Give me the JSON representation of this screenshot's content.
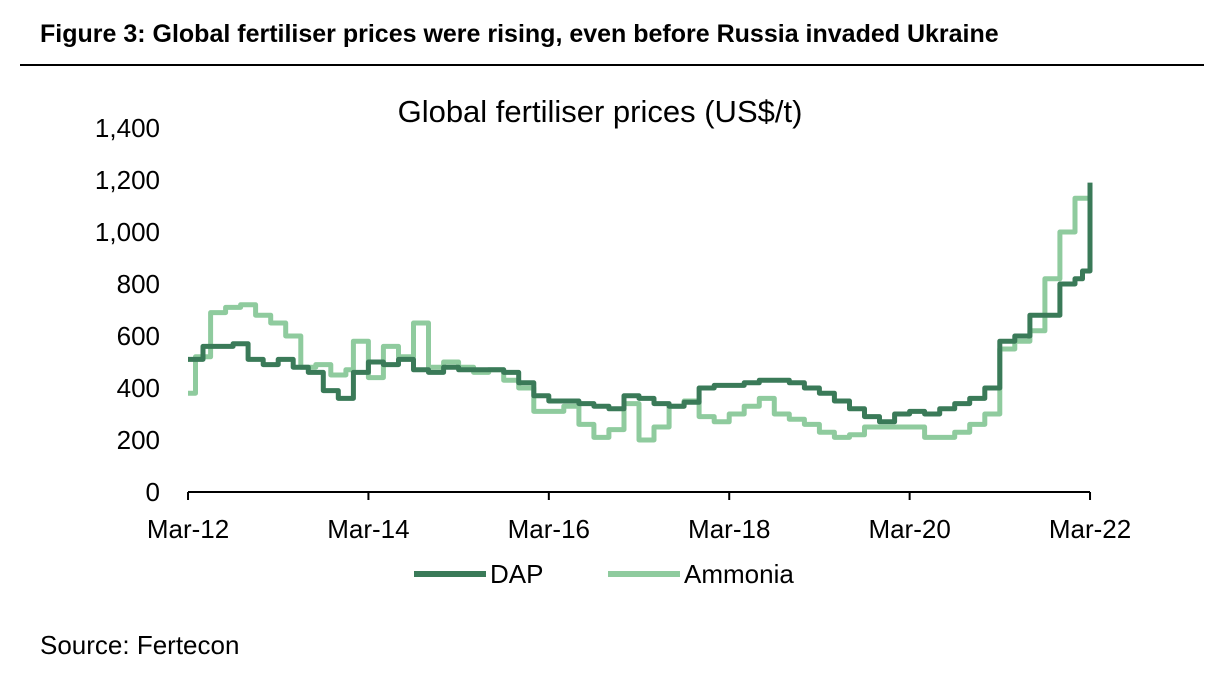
{
  "figure": {
    "heading": "Figure 3: Global fertiliser prices were rising, even before Russia invaded Ukraine",
    "source": "Source: Fertecon"
  },
  "chart_data": {
    "type": "line",
    "title": "Global fertiliser prices (US$/t)",
    "xlabel": "",
    "ylabel": "",
    "x_range": [
      "2012-03",
      "2022-03"
    ],
    "x_ticks": [
      "Mar-12",
      "Mar-14",
      "Mar-16",
      "Mar-18",
      "Mar-20",
      "Mar-22"
    ],
    "x_tick_years": [
      2012.167,
      2014.167,
      2016.167,
      2018.167,
      2020.167,
      2022.167
    ],
    "ylim": [
      0,
      1400
    ],
    "y_ticks": [
      0,
      200,
      400,
      600,
      800,
      1000,
      1200,
      1400
    ],
    "y_tick_labels": [
      "0",
      "200",
      "400",
      "600",
      "800",
      "1,000",
      "1,200",
      "1,400"
    ],
    "grid": false,
    "legend_position": "bottom-center",
    "series": [
      {
        "name": "DAP",
        "color": "#3a7a58",
        "x": [
          "2012-03",
          "2012-05",
          "2012-07",
          "2012-09",
          "2012-11",
          "2013-01",
          "2013-03",
          "2013-05",
          "2013-07",
          "2013-09",
          "2013-11",
          "2014-01",
          "2014-03",
          "2014-05",
          "2014-07",
          "2014-09",
          "2014-11",
          "2015-01",
          "2015-03",
          "2015-05",
          "2015-07",
          "2015-09",
          "2015-11",
          "2016-01",
          "2016-03",
          "2016-05",
          "2016-07",
          "2016-09",
          "2016-11",
          "2017-01",
          "2017-03",
          "2017-05",
          "2017-07",
          "2017-09",
          "2017-11",
          "2018-01",
          "2018-03",
          "2018-05",
          "2018-07",
          "2018-09",
          "2018-11",
          "2019-01",
          "2019-03",
          "2019-05",
          "2019-07",
          "2019-09",
          "2019-11",
          "2020-01",
          "2020-03",
          "2020-05",
          "2020-07",
          "2020-09",
          "2020-11",
          "2021-01",
          "2021-03",
          "2021-05",
          "2021-07",
          "2021-09",
          "2021-11",
          "2022-01",
          "2022-02",
          "2022-03"
        ],
        "values": [
          510,
          560,
          560,
          570,
          510,
          490,
          510,
          480,
          460,
          390,
          360,
          460,
          500,
          490,
          510,
          470,
          460,
          480,
          470,
          470,
          470,
          460,
          420,
          370,
          350,
          350,
          340,
          330,
          320,
          370,
          360,
          340,
          330,
          345,
          400,
          410,
          410,
          420,
          430,
          430,
          420,
          400,
          380,
          350,
          320,
          290,
          270,
          300,
          310,
          300,
          320,
          340,
          360,
          400,
          580,
          600,
          680,
          680,
          800,
          820,
          850,
          1190
        ]
      },
      {
        "name": "Ammonia",
        "color": "#8fcb9e",
        "x": [
          "2012-03",
          "2012-04",
          "2012-06",
          "2012-08",
          "2012-10",
          "2012-12",
          "2013-02",
          "2013-04",
          "2013-06",
          "2013-08",
          "2013-10",
          "2013-12",
          "2014-01",
          "2014-03",
          "2014-05",
          "2014-07",
          "2014-09",
          "2014-11",
          "2015-01",
          "2015-03",
          "2015-05",
          "2015-07",
          "2015-09",
          "2015-11",
          "2016-01",
          "2016-03",
          "2016-05",
          "2016-07",
          "2016-09",
          "2016-11",
          "2017-01",
          "2017-03",
          "2017-05",
          "2017-07",
          "2017-09",
          "2017-11",
          "2018-01",
          "2018-03",
          "2018-05",
          "2018-07",
          "2018-09",
          "2018-11",
          "2019-01",
          "2019-03",
          "2019-05",
          "2019-07",
          "2019-09",
          "2019-11",
          "2020-01",
          "2020-03",
          "2020-05",
          "2020-07",
          "2020-09",
          "2020-11",
          "2021-01",
          "2021-03",
          "2021-05",
          "2021-07",
          "2021-09",
          "2021-11",
          "2022-01",
          "2022-03"
        ],
        "values": [
          380,
          520,
          690,
          710,
          720,
          680,
          650,
          600,
          480,
          490,
          450,
          470,
          580,
          440,
          560,
          520,
          650,
          480,
          500,
          480,
          460,
          470,
          430,
          400,
          310,
          310,
          330,
          260,
          210,
          240,
          340,
          200,
          250,
          330,
          350,
          290,
          270,
          300,
          330,
          360,
          300,
          280,
          260,
          230,
          210,
          220,
          250,
          250,
          250,
          250,
          210,
          210,
          230,
          260,
          300,
          550,
          580,
          620,
          820,
          1000,
          1130,
          1130
        ]
      }
    ]
  }
}
